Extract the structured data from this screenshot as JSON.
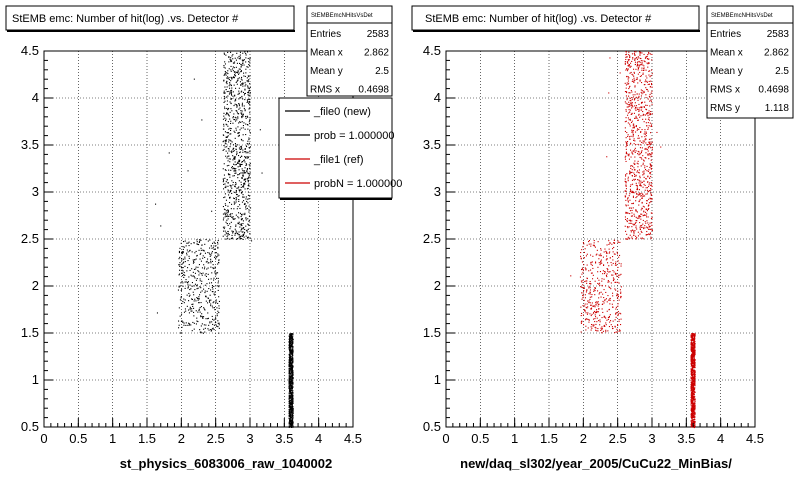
{
  "chart_data": [
    {
      "type": "scatter",
      "title": "StEMB emc: Number of hit(log) .vs. Detector #",
      "xlabel": "st_physics_6083006_raw_1040002",
      "ylabel": "",
      "xlim": [
        0,
        4.5
      ],
      "ylim": [
        0.5,
        4.5
      ],
      "xticks": [
        "0",
        "0.5",
        "1",
        "1.5",
        "2",
        "2.5",
        "3",
        "3.5",
        "4",
        "4.5"
      ],
      "yticks": [
        "0.5",
        "1",
        "1.5",
        "2",
        "2.5",
        "3",
        "3.5",
        "4",
        "4.5"
      ],
      "grid": true,
      "marker_color": "#000000",
      "clusters": [
        {
          "x_range": [
            2.6,
            3.0
          ],
          "y_range": [
            2.5,
            4.5
          ],
          "density": "high"
        },
        {
          "x_range": [
            1.95,
            2.55
          ],
          "y_range": [
            1.5,
            2.5
          ],
          "density": "medium"
        },
        {
          "x_range": [
            3.56,
            3.62
          ],
          "y_range": [
            0.5,
            1.5
          ],
          "density": "high"
        }
      ],
      "stats": {
        "name": "StEMBEmcNHitsVsDet",
        "rows": [
          {
            "label": "Entries",
            "value": "2583"
          },
          {
            "label": "Mean x",
            "value": "2.862"
          },
          {
            "label": "Mean y",
            "value": "2.5"
          },
          {
            "label": "RMS x",
            "value": "0.4698"
          }
        ]
      },
      "legend": {
        "placement": "top-right",
        "entries": [
          {
            "label": "_file0 (new)",
            "color": "#000000"
          },
          {
            "label": "prob = 1.000000",
            "color": "#000000"
          },
          {
            "label": "_file1 (ref)",
            "color": "#cc0000"
          },
          {
            "label": "probN = 1.000000",
            "color": "#cc0000"
          }
        ]
      }
    },
    {
      "type": "scatter",
      "title": "StEMB emc: Number of hit(log) .vs. Detector #",
      "xlabel": "new/daq_sl302/year_2005/CuCu22_MinBias/",
      "ylabel": "",
      "xlim": [
        0,
        4.5
      ],
      "ylim": [
        0.5,
        4.5
      ],
      "xticks": [
        "0",
        "0.5",
        "1",
        "1.5",
        "2",
        "2.5",
        "3",
        "3.5",
        "4",
        "4.5"
      ],
      "yticks": [
        "0.5",
        "1",
        "1.5",
        "2",
        "2.5",
        "3",
        "3.5",
        "4",
        "4.5"
      ],
      "grid": true,
      "marker_color": "#cc0000",
      "clusters": [
        {
          "x_range": [
            2.6,
            3.0
          ],
          "y_range": [
            2.5,
            4.5
          ],
          "density": "high"
        },
        {
          "x_range": [
            1.95,
            2.55
          ],
          "y_range": [
            1.5,
            2.5
          ],
          "density": "medium"
        },
        {
          "x_range": [
            3.56,
            3.62
          ],
          "y_range": [
            0.5,
            1.5
          ],
          "density": "high"
        }
      ],
      "stats": {
        "name": "StEMBEmcNHitsVsDet",
        "rows": [
          {
            "label": "Entries",
            "value": "2583"
          },
          {
            "label": "Mean x",
            "value": "2.862"
          },
          {
            "label": "Mean y",
            "value": "2.5"
          },
          {
            "label": "RMS x",
            "value": "0.4698"
          },
          {
            "label": "RMS y",
            "value": "1.118"
          }
        ]
      }
    }
  ]
}
